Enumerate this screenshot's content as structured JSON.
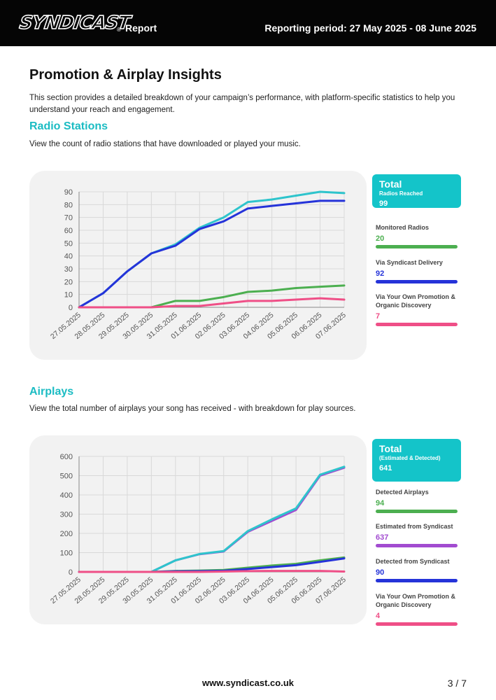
{
  "header": {
    "logo_text": "SYNDICAST",
    "logo_mark": "®",
    "report_label": "Report",
    "period": "Reporting period: 27 May 2025 - 08 June 2025"
  },
  "page": {
    "title": "Promotion & Airplay Insights",
    "intro": "This section provides a detailed breakdown of your campaign’s performance, with platform-specific statistics to help you understand your reach and engagement."
  },
  "radio": {
    "title": "Radio Stations",
    "description": "View the count of radio stations that have downloaded or played your music.",
    "total": {
      "title": "Total",
      "subtitle": "Radios Reached",
      "value": "99"
    },
    "stats": [
      {
        "label": "Monitored Radios",
        "value": "20",
        "color": "#4caf50"
      },
      {
        "label": "Via Syndicast Delivery",
        "value": "92",
        "color": "#2533d9"
      },
      {
        "label": "Via Your Own Promotion & Organic Discovery",
        "value": "7",
        "color": "#ef4f87"
      }
    ]
  },
  "airplay": {
    "title": "Airplays",
    "description": "View the total number of airplays your song has received - with breakdown for play sources.",
    "total": {
      "title": "Total",
      "subtitle": "(Estimated & Detected)",
      "value": "641"
    },
    "stats": [
      {
        "label": "Detected Airplays",
        "value": "94",
        "color": "#4caf50"
      },
      {
        "label": "Estimated from Syndicast",
        "value": "637",
        "color": "#a24bd0"
      },
      {
        "label": "Detected from Syndicast",
        "value": "90",
        "color": "#2533d9"
      },
      {
        "label": "Via Your Own Promotion & Organic Discovery",
        "value": "4",
        "color": "#ef4f87"
      }
    ]
  },
  "footer": {
    "url": "www.syndicast.co.uk",
    "page": "3 / 7"
  },
  "chart_data": [
    {
      "type": "line",
      "title": "Radio Stations",
      "categories": [
        "27.05.2025",
        "28.05.2025",
        "29.05.2025",
        "30.05.2025",
        "31.05.2025",
        "01.06.2025",
        "02.06.2025",
        "03.06.2025",
        "04.06.2025",
        "05.06.2025",
        "06.06.2025",
        "07.06.2025"
      ],
      "ylim": [
        0,
        90
      ],
      "yticks": [
        0,
        10,
        20,
        30,
        40,
        50,
        60,
        70,
        80,
        90
      ],
      "grid": true,
      "series": [
        {
          "name": "Total",
          "color": "#2ec4cc",
          "values": [
            0,
            11,
            28,
            42,
            49,
            62,
            70,
            82,
            84,
            87,
            90,
            89
          ]
        },
        {
          "name": "Via Syndicast Delivery",
          "color": "#2533d9",
          "values": [
            0,
            11,
            28,
            42,
            48,
            61,
            67,
            77,
            79,
            81,
            83,
            83
          ]
        },
        {
          "name": "Monitored Radios",
          "color": "#4caf50",
          "values": [
            0,
            0,
            0,
            0,
            5,
            5,
            8,
            12,
            13,
            15,
            16,
            17
          ]
        },
        {
          "name": "Via Your Own Promotion & Organic Discovery",
          "color": "#ef4f87",
          "values": [
            0,
            0,
            0,
            0,
            1,
            1,
            3,
            5,
            5,
            6,
            7,
            6
          ]
        }
      ]
    },
    {
      "type": "line",
      "title": "Airplays",
      "categories": [
        "27.05.2025",
        "28.05.2025",
        "29.05.2025",
        "30.05.2025",
        "31.05.2025",
        "01.06.2025",
        "02.06.2025",
        "03.06.2025",
        "04.06.2025",
        "05.06.2025",
        "06.06.2025",
        "07.06.2025"
      ],
      "ylim": [
        0,
        600
      ],
      "yticks": [
        0,
        100,
        200,
        300,
        400,
        500,
        600
      ],
      "grid": true,
      "series": [
        {
          "name": "Estimated from Syndicast",
          "color": "#a24bd0",
          "values": [
            0,
            0,
            0,
            0,
            60,
            92,
            106,
            208,
            265,
            322,
            500,
            541
          ]
        },
        {
          "name": "Total",
          "color": "#2ec4cc",
          "values": [
            0,
            0,
            0,
            0,
            60,
            93,
            108,
            212,
            273,
            330,
            505,
            546
          ]
        },
        {
          "name": "Detected Airplays",
          "color": "#4caf50",
          "values": [
            0,
            0,
            0,
            0,
            5,
            7,
            10,
            22,
            33,
            42,
            60,
            75
          ]
        },
        {
          "name": "Detected from Syndicast",
          "color": "#2533d9",
          "values": [
            0,
            0,
            0,
            0,
            3,
            4,
            6,
            15,
            25,
            35,
            52,
            70
          ]
        },
        {
          "name": "Via Your Own Promotion & Organic Discovery",
          "color": "#ef4f87",
          "values": [
            0,
            0,
            0,
            0,
            0,
            0,
            2,
            4,
            5,
            5,
            5,
            2
          ]
        }
      ]
    }
  ]
}
